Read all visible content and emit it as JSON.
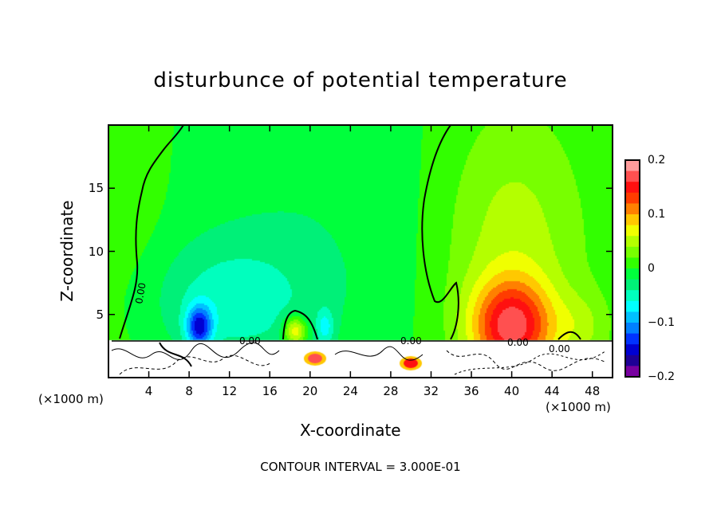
{
  "chart_data": {
    "type": "heatmap",
    "title": "disturbunce of potential temperature",
    "xlabel": "X-coordinate",
    "ylabel": "Z-coordinate",
    "x_unit_label": "(×1000 m)",
    "xlim": [
      0,
      50
    ],
    "ylim": [
      0,
      20
    ],
    "xticks": [
      4,
      8,
      12,
      16,
      20,
      24,
      28,
      32,
      36,
      40,
      44,
      48
    ],
    "yticks": [
      5,
      10,
      15
    ],
    "colorbar": {
      "range": [
        -0.2,
        0.2
      ],
      "step": 0.02,
      "tick_labels": [
        "0.2",
        "0.1",
        "0",
        "−0.1",
        "−0.2"
      ],
      "colors_top_to_bottom": [
        "#ff9c9c",
        "#ff5050",
        "#ff1010",
        "#ff3c00",
        "#ff8000",
        "#ffc800",
        "#f0ff00",
        "#b4ff00",
        "#78ff00",
        "#32ff00",
        "#00ff3c",
        "#00f078",
        "#00ffbe",
        "#00ffff",
        "#00c0ff",
        "#0080ff",
        "#0032ff",
        "#0000d2",
        "#1e0096",
        "#7800a0"
      ]
    },
    "contour_label": "0.00",
    "contour_interval_text": "CONTOUR INTERVAL = 3.000E-01",
    "base_value": 0.003,
    "features": [
      {
        "x": 40,
        "z": 4,
        "sx": 2.8,
        "sz": 2.6,
        "amp": 0.14
      },
      {
        "x": 40,
        "z": 10,
        "sx": 5,
        "sz": 8,
        "amp": 0.05
      },
      {
        "x": 47,
        "z": 4,
        "sx": 2,
        "sz": 2,
        "amp": 0.03
      },
      {
        "x": 9,
        "z": 4,
        "sx": 0.9,
        "sz": 1.2,
        "amp": -0.12
      },
      {
        "x": 12,
        "z": 6,
        "sx": 6,
        "sz": 3.5,
        "amp": -0.045
      },
      {
        "x": 20,
        "z": 12,
        "sx": 10,
        "sz": 10,
        "amp": -0.02
      },
      {
        "x": 2,
        "z": 12,
        "sx": 3,
        "sz": 10,
        "amp": 0.012
      },
      {
        "x": 18.5,
        "z": 3.7,
        "sx": 0.8,
        "sz": 0.8,
        "amp": 0.1
      },
      {
        "x": 21.5,
        "z": 4,
        "sx": 0.6,
        "sz": 1,
        "amp": -0.05
      }
    ],
    "lower_masked_below_z": 3
  }
}
